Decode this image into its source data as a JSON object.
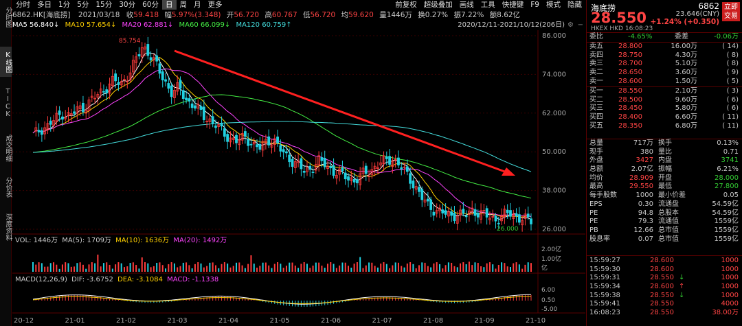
{
  "left_sidebar": {
    "items": [
      "分时图",
      "K线图",
      "TICK",
      "成交明细",
      "分价表",
      "深度资料"
    ]
  },
  "toolbar": {
    "periods": [
      "分时",
      "多日",
      "1分",
      "5分",
      "15分",
      "30分",
      "60分",
      "日",
      "周",
      "月",
      "更多"
    ],
    "active_period": "日",
    "right_items": [
      "前复权",
      "超级叠加",
      "画线",
      "工具",
      "快捷键",
      "F9",
      "模式",
      "隐藏"
    ]
  },
  "quote_line": {
    "code": "6862.HK[海底捞]",
    "date": "2021/03/18",
    "close_label": "收",
    "close": "59.418",
    "range_label": "幅",
    "range": "5.97%(3.348)",
    "open_label": "开",
    "open": "56.720",
    "high_label": "高",
    "high": "60.767",
    "low_label": "低",
    "low": "56.720",
    "avg_label": "均",
    "avg": "59.620",
    "vol_label": "量",
    "vol": "1446万",
    "turnover_label": "换",
    "turnover": "0.27%",
    "amp_label": "振",
    "amp": "7.22%",
    "amount_label": "额",
    "amount": "8.62亿"
  },
  "ma_line": {
    "ma5_label": "MA5",
    "ma5": "56.840↓",
    "ma10_label": "MA10",
    "ma10": "57.654↓",
    "ma20_label": "MA20",
    "ma20": "62.881↓",
    "ma60_label": "MA60",
    "ma60": "66.099↓",
    "ma120_label": "MA120",
    "ma120": "60.759↑",
    "date_range": "2020/12/11-2021/10/12(206日)"
  },
  "vol_line": {
    "vol": "VOL: 1446万",
    "ma5": "MA(5): 1709万",
    "ma10": "MA(10): 1636万",
    "ma20": "MA(20): 1492万"
  },
  "macd_line": {
    "title": "MACD(12,26,9)",
    "dif": "DIF: -3.6752",
    "dea": "DEA: -3.1084",
    "macd": "MACD: -1.1338"
  },
  "chart_data": [
    {
      "type": "candlestick",
      "title": "6862.HK 海底捞 日K",
      "price_axis_ticks": [
        "86.000",
        "74.000",
        "62.000",
        "50.000",
        "38.000",
        "26.000"
      ],
      "ylim": [
        26,
        86
      ],
      "annotations": {
        "high": "85.754",
        "low": "26.000"
      },
      "x_ticks": [
        "20-12",
        "21-01",
        "21-02",
        "21-03",
        "21-04",
        "21-05",
        "21-06",
        "21-07",
        "21-08",
        "21-09",
        "21-10"
      ],
      "close_series": [
        55,
        57,
        58,
        60,
        62,
        61,
        63,
        64,
        66,
        68,
        70,
        72,
        71,
        74,
        78,
        83,
        80,
        76,
        72,
        68,
        70,
        66,
        64,
        62,
        60,
        58,
        56,
        54,
        53,
        55,
        52,
        51,
        54,
        53,
        50,
        48,
        46,
        44,
        45,
        47,
        46,
        44,
        43,
        42,
        41,
        43,
        44,
        46,
        47,
        48,
        46,
        43,
        40,
        36,
        33,
        32,
        31,
        30,
        31,
        30,
        32,
        31,
        30,
        29,
        30,
        31,
        30,
        29,
        28.6
      ],
      "ma_names": [
        "MA5",
        "MA10",
        "MA20",
        "MA60",
        "MA120"
      ],
      "ma_colors": [
        "#ffffff",
        "#ffd000",
        "#ff44ff",
        "#44ee44",
        "#44dddd"
      ]
    },
    {
      "type": "bar",
      "title": "VOL",
      "vol_axis_ticks": [
        "2.00亿",
        "1.00亿",
        "亿"
      ]
    },
    {
      "type": "line",
      "title": "MACD",
      "macd_axis_ticks": [
        "6.00",
        "0.50",
        "-5.00"
      ]
    }
  ],
  "panel": {
    "name": "海底捞",
    "code": "6862",
    "trade_button": [
      "立即",
      "交易"
    ],
    "price": "28.550",
    "cny": "23.646(CNY)",
    "change": "+1.24% (+0.350)",
    "exchange": "HKEX HKD 16:08:23",
    "weibi_label": "委比",
    "weibi": "-4.65%",
    "weicha_label": "委差",
    "weicha": "-0.06万",
    "asks": [
      {
        "label": "卖五",
        "price": "28.800",
        "vol": "16.00万",
        "num": "( 14)"
      },
      {
        "label": "卖四",
        "price": "28.750",
        "vol": "4.30万",
        "num": "( 8)"
      },
      {
        "label": "卖三",
        "price": "28.700",
        "vol": "5.10万",
        "num": "( 8)"
      },
      {
        "label": "卖二",
        "price": "28.650",
        "vol": "3.60万",
        "num": "( 9)"
      },
      {
        "label": "卖一",
        "price": "28.600",
        "vol": "1.50万",
        "num": "( 5)"
      }
    ],
    "bids": [
      {
        "label": "买一",
        "price": "28.550",
        "vol": "2.10万",
        "num": "( 3)"
      },
      {
        "label": "买二",
        "price": "28.500",
        "vol": "9.60万",
        "num": "( 6)"
      },
      {
        "label": "买三",
        "price": "28.450",
        "vol": "5.80万",
        "num": "( 6)"
      },
      {
        "label": "买四",
        "price": "28.400",
        "vol": "6.60万",
        "num": "( 11)"
      },
      {
        "label": "买五",
        "price": "28.350",
        "vol": "6.80万",
        "num": "( 11)"
      }
    ],
    "stats": [
      {
        "l1": "总量",
        "v1": "717万",
        "l2": "换手",
        "v2": "0.13%",
        "c1": "#c8c8c8",
        "c2": "#c8c8c8"
      },
      {
        "l1": "现手",
        "v1": "380",
        "l2": "量比",
        "v2": "0.71",
        "c1": "#c8c8c8",
        "c2": "#c8c8c8"
      },
      {
        "l1": "外盘",
        "v1": "3427",
        "l2": "内盘",
        "v2": "3741",
        "c1": "#ff4444",
        "c2": "#33cc33"
      },
      {
        "l1": "总额",
        "v1": "2.07亿",
        "l2": "振幅",
        "v2": "6.21%",
        "c1": "#c8c8c8",
        "c2": "#c8c8c8"
      },
      {
        "l1": "均价",
        "v1": "28.909",
        "l2": "开盘",
        "v2": "28.000",
        "c1": "#ff4444",
        "c2": "#33cc33"
      },
      {
        "l1": "最高",
        "v1": "29.550",
        "l2": "最低",
        "v2": "27.800",
        "c1": "#ff4444",
        "c2": "#33cc33"
      },
      {
        "l1": "每手股数",
        "v1": "1000",
        "l2": "最小价差",
        "v2": "0.05",
        "c1": "#c8c8c8",
        "c2": "#c8c8c8"
      },
      {
        "l1": "EPS",
        "v1": "0.30",
        "l2": "流通盘",
        "v2": "54.59亿",
        "c1": "#c8c8c8",
        "c2": "#c8c8c8"
      },
      {
        "l1": "PE",
        "v1": "94.8",
        "l2": "总股本",
        "v2": "54.59亿",
        "c1": "#c8c8c8",
        "c2": "#c8c8c8"
      },
      {
        "l1": "PE",
        "v1": "79.3",
        "l2": "流通值",
        "v2": "1559亿",
        "c1": "#c8c8c8",
        "c2": "#c8c8c8"
      },
      {
        "l1": "PB",
        "v1": "12.66",
        "l2": "总市值",
        "v2": "1559亿",
        "c1": "#c8c8c8",
        "c2": "#c8c8c8"
      },
      {
        "l1": "股息率",
        "v1": "0.07",
        "l2": "总市值",
        "v2": "1559亿",
        "c1": "#c8c8c8",
        "c2": "#c8c8c8"
      }
    ],
    "ticks": [
      {
        "time": "15:59:27",
        "price": "28.600",
        "arrow": "",
        "vol": "1000",
        "color": "#ff4444"
      },
      {
        "time": "15:59:30",
        "price": "28.600",
        "arrow": "",
        "vol": "1000",
        "color": "#ff4444"
      },
      {
        "time": "15:59:31",
        "price": "28.550",
        "arrow": "↓",
        "vol": "1000",
        "color": "#ff4444"
      },
      {
        "time": "15:59:34",
        "price": "28.600",
        "arrow": "↑",
        "vol": "1000",
        "color": "#ff4444"
      },
      {
        "time": "15:59:38",
        "price": "28.550",
        "arrow": "↓",
        "vol": "1000",
        "color": "#ff4444"
      },
      {
        "time": "15:59:41",
        "price": "28.550",
        "arrow": "",
        "vol": "4000",
        "color": "#ff4444"
      },
      {
        "time": "16:08:23",
        "price": "28.550",
        "arrow": "",
        "vol": "38.00万",
        "color": "#ff4444"
      }
    ]
  }
}
